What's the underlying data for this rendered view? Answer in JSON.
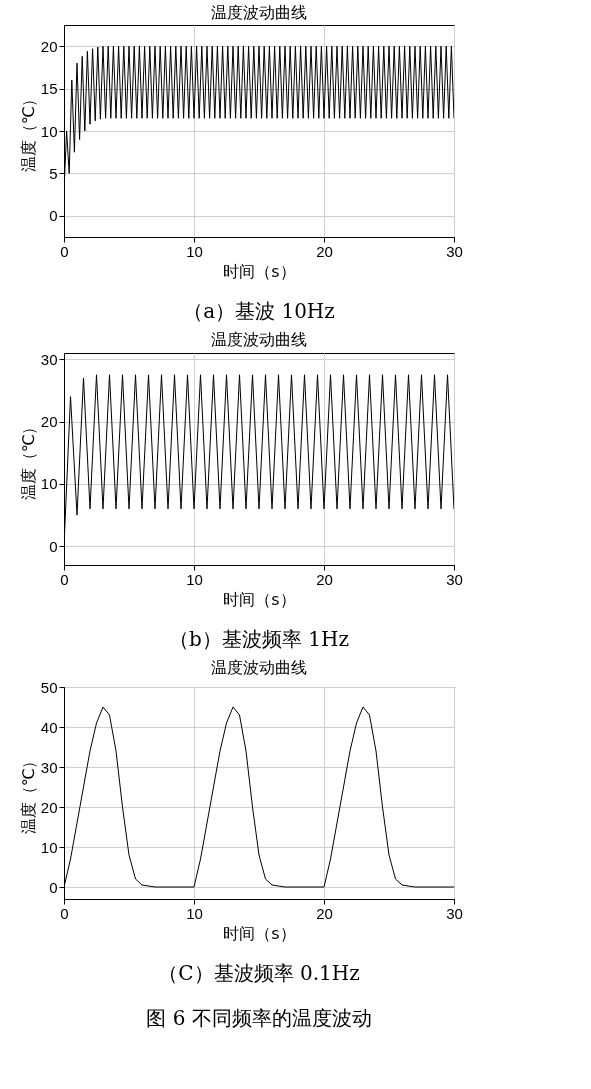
{
  "chart_data": [
    {
      "type": "line",
      "title": "温度波动曲线",
      "xlabel": "时间（s）",
      "ylabel": "温度（℃）",
      "xlim": [
        0,
        30
      ],
      "xticks": [
        0,
        10,
        20,
        30
      ],
      "ylim": [
        -2.5,
        22.5
      ],
      "yticks": [
        0,
        5,
        10,
        15,
        20
      ],
      "grid": true,
      "annotations": [
        "（a）基波 10Hz"
      ],
      "series": [
        {
          "color": "#000000",
          "x": [
            0,
            0.2,
            0.4,
            0.6,
            0.8,
            1,
            1.2,
            1.4,
            1.6,
            1.8,
            2,
            2.2,
            2.4,
            2.6,
            2.8,
            3,
            3.2,
            3.4,
            3.6,
            3.8,
            4,
            4.2,
            4.4,
            4.6,
            4.8,
            5,
            5.2,
            5.4,
            5.6,
            5.8,
            6,
            6.2,
            6.4,
            6.6,
            6.8,
            7,
            7.2,
            7.4,
            7.6,
            7.8,
            8,
            8.2,
            8.4,
            8.6,
            8.8,
            9,
            9.2,
            9.4,
            9.6,
            9.8,
            10,
            10.2,
            10.4,
            10.6,
            10.8,
            11,
            11.2,
            11.4,
            11.6,
            11.8,
            12,
            12.2,
            12.4,
            12.6,
            12.8,
            13,
            13.2,
            13.4,
            13.6,
            13.8,
            14,
            14.2,
            14.4,
            14.6,
            14.8,
            15,
            15.2,
            15.4,
            15.6,
            15.8,
            16,
            16.2,
            16.4,
            16.6,
            16.8,
            17,
            17.2,
            17.4,
            17.6,
            17.8,
            18,
            18.2,
            18.4,
            18.6,
            18.8,
            19,
            19.2,
            19.4,
            19.6,
            19.8,
            20,
            20.2,
            20.4,
            20.6,
            20.8,
            21,
            21.2,
            21.4,
            21.6,
            21.8,
            22,
            22.2,
            22.4,
            22.6,
            22.8,
            23,
            23.2,
            23.4,
            23.6,
            23.8,
            24,
            24.2,
            24.4,
            24.6,
            24.8,
            25,
            25.2,
            25.4,
            25.6,
            25.8,
            26,
            26.2,
            26.4,
            26.6,
            26.8,
            27,
            27.2,
            27.4,
            27.6,
            27.8,
            28,
            28.2,
            28.4,
            28.6,
            28.8,
            29,
            29.2,
            29.4,
            29.6,
            29.8,
            30
          ],
          "values": [
            3,
            10,
            5,
            16,
            7.5,
            18,
            9,
            18.8,
            10,
            19.4,
            10.8,
            19.7,
            11.2,
            19.9,
            11.4,
            20,
            11.5,
            20,
            11.5,
            20,
            11.5,
            20,
            11.5,
            20,
            11.5,
            20,
            11.5,
            20,
            11.5,
            20,
            11.5,
            20,
            11.5,
            20,
            11.5,
            20,
            11.5,
            20,
            11.5,
            20,
            11.5,
            20,
            11.5,
            20,
            11.5,
            20,
            11.5,
            20,
            11.5,
            20,
            11.5,
            20,
            11.5,
            20,
            11.5,
            20,
            11.5,
            20,
            11.5,
            20,
            11.5,
            20,
            11.5,
            20,
            11.5,
            20,
            11.5,
            20,
            11.5,
            20,
            11.5,
            20,
            11.5,
            20,
            11.5,
            20,
            11.5,
            20,
            11.5,
            20,
            11.5,
            20,
            11.5,
            20,
            11.5,
            20,
            11.5,
            20,
            11.5,
            20,
            11.5,
            20,
            11.5,
            20,
            11.5,
            20,
            11.5,
            20,
            11.5,
            20,
            11.5,
            20,
            11.5,
            20,
            11.5,
            20,
            11.5,
            20,
            11.5,
            20,
            11.5,
            20,
            11.5,
            20,
            11.5,
            20,
            11.5,
            20,
            11.5,
            20,
            11.5,
            20,
            11.5,
            20,
            11.5,
            20,
            11.5,
            20,
            11.5,
            20,
            11.5,
            20,
            11.5,
            20,
            11.5,
            20,
            11.5,
            20,
            11.5,
            20,
            11.5,
            20,
            11.5,
            20,
            11.5,
            20,
            11.5,
            20,
            11.5,
            20,
            11.5
          ]
        }
      ]
    },
    {
      "type": "line",
      "title": "温度波动曲线",
      "xlabel": "时间（s）",
      "ylabel": "温度（℃）",
      "xlim": [
        0,
        30
      ],
      "xticks": [
        0,
        10,
        20,
        30
      ],
      "ylim": [
        -3,
        31
      ],
      "yticks": [
        0,
        10,
        20,
        30
      ],
      "grid": true,
      "annotations": [
        "（b）基波频率 1Hz"
      ],
      "series": [
        {
          "color": "#000000",
          "x": [
            0,
            0.5,
            1,
            1.5,
            2,
            2.5,
            3,
            3.5,
            4,
            4.5,
            5,
            5.5,
            6,
            6.5,
            7,
            7.5,
            8,
            8.5,
            9,
            9.5,
            10,
            10.5,
            11,
            11.5,
            12,
            12.5,
            13,
            13.5,
            14,
            14.5,
            15,
            15.5,
            16,
            16.5,
            17,
            17.5,
            18,
            18.5,
            19,
            19.5,
            20,
            20.5,
            21,
            21.5,
            22,
            22.5,
            23,
            23.5,
            24,
            24.5,
            25,
            25.5,
            26,
            26.5,
            27,
            27.5,
            28,
            28.5,
            29,
            29.5,
            30
          ],
          "values": [
            0,
            24,
            5,
            27,
            6,
            27.5,
            6,
            27.5,
            6,
            27.5,
            6,
            27.5,
            6,
            27.5,
            6,
            27.5,
            6,
            27.5,
            6,
            27.5,
            6,
            27.5,
            6,
            27.5,
            6,
            27.5,
            6,
            27.5,
            6,
            27.5,
            6,
            27.5,
            6,
            27.5,
            6,
            27.5,
            6,
            27.5,
            6,
            27.5,
            6,
            27.5,
            6,
            27.5,
            6,
            27.5,
            6,
            27.5,
            6,
            27.5,
            6,
            27.5,
            6,
            27.5,
            6,
            27.5,
            6,
            27.5,
            6,
            27.5,
            6
          ]
        }
      ]
    },
    {
      "type": "line",
      "title": "温度波动曲线",
      "xlabel": "时间（s）",
      "ylabel": "温度（℃）",
      "xlim": [
        0,
        30
      ],
      "xticks": [
        0,
        10,
        20,
        30
      ],
      "ylim": [
        -3,
        50
      ],
      "yticks": [
        0,
        10,
        20,
        30,
        40,
        50
      ],
      "grid": true,
      "annotations": [
        "（C）基波频率 0.1Hz",
        "图 6 不同频率的温度波动"
      ],
      "series": [
        {
          "color": "#000000",
          "x": [
            0,
            0.5,
            1,
            1.5,
            2,
            2.5,
            3,
            3.5,
            4,
            4.5,
            5,
            5.5,
            6,
            7,
            8,
            9,
            10,
            10.5,
            11,
            11.5,
            12,
            12.5,
            13,
            13.5,
            14,
            14.5,
            15,
            15.5,
            16,
            17,
            18,
            19,
            20,
            20.5,
            21,
            21.5,
            22,
            22.5,
            23,
            23.5,
            24,
            24.5,
            25,
            25.5,
            26,
            27,
            28,
            29,
            30
          ],
          "values": [
            0,
            7,
            16,
            25,
            34,
            41,
            45,
            43,
            34,
            20,
            8,
            2,
            0.5,
            0,
            0,
            0,
            0,
            7,
            16,
            25,
            34,
            41,
            45,
            43,
            34,
            20,
            8,
            2,
            0.5,
            0,
            0,
            0,
            0,
            7,
            16,
            25,
            34,
            41,
            45,
            43,
            34,
            20,
            8,
            2,
            0.5,
            0,
            0,
            0,
            0
          ]
        }
      ]
    }
  ]
}
